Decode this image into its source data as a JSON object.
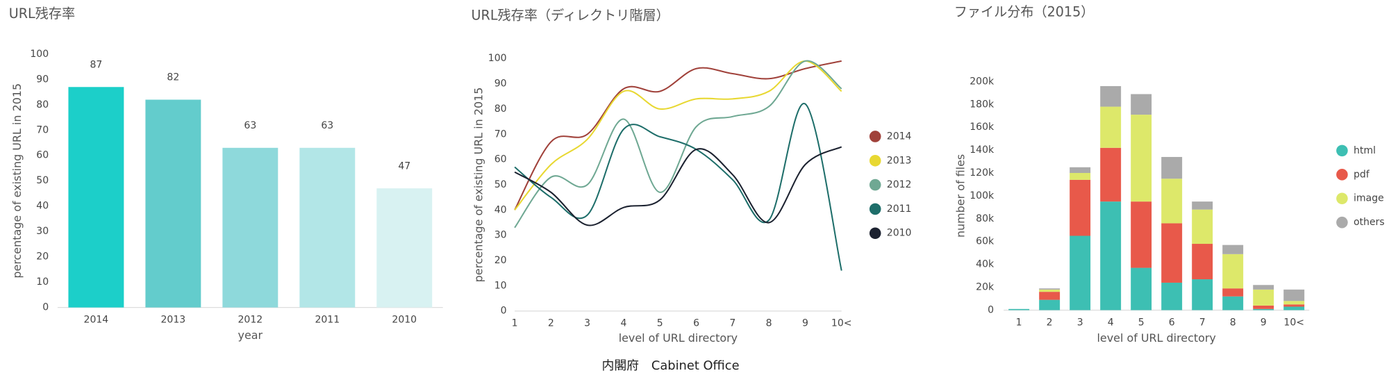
{
  "chart_data": [
    {
      "type": "bar",
      "title": "URL残存率",
      "xlabel": "year",
      "ylabel": "percentage of existing URL in 2015",
      "categories": [
        "2014",
        "2013",
        "2012",
        "2011",
        "2010"
      ],
      "values": [
        87,
        82,
        63,
        63,
        47
      ],
      "colors": [
        "#1ccfc9",
        "#63cccc",
        "#8ed9db",
        "#b2e6e7",
        "#d8f2f2"
      ],
      "ylim": [
        0,
        100
      ],
      "yticks": [
        0,
        10,
        20,
        30,
        40,
        50,
        60,
        70,
        80,
        90,
        100
      ]
    },
    {
      "type": "line",
      "title": "URL残存率（ディレクトリ階層）",
      "xlabel": "level of URL directory",
      "ylabel": "percentage of existing URL in 2015",
      "categories": [
        "1",
        "2",
        "3",
        "4",
        "5",
        "6",
        "7",
        "8",
        "9",
        "10<"
      ],
      "series": [
        {
          "name": "2014",
          "color": "#a0413a",
          "values": [
            40,
            67,
            70,
            88,
            87,
            96,
            94,
            92,
            96,
            99
          ]
        },
        {
          "name": "2013",
          "color": "#e8d832",
          "values": [
            40,
            58,
            68,
            87,
            80,
            84,
            84,
            87,
            99,
            87
          ]
        },
        {
          "name": "2012",
          "color": "#6fa893",
          "values": [
            33,
            53,
            50,
            76,
            47,
            73,
            77,
            81,
            99,
            88
          ]
        },
        {
          "name": "2011",
          "color": "#1e6e6a",
          "values": [
            57,
            45,
            38,
            72,
            69,
            64,
            52,
            36,
            82,
            16
          ]
        },
        {
          "name": "2010",
          "color": "#1c2230",
          "values": [
            55,
            47,
            34,
            41,
            44,
            64,
            54,
            35,
            58,
            65
          ]
        }
      ],
      "ylim": [
        0,
        100
      ],
      "yticks": [
        0,
        10,
        20,
        30,
        40,
        50,
        60,
        70,
        80,
        90,
        100
      ]
    },
    {
      "type": "stacked_bar",
      "title": "ファイル分布（2015）",
      "xlabel": "level of URL directory",
      "ylabel": "number of files",
      "categories": [
        "1",
        "2",
        "3",
        "4",
        "5",
        "6",
        "7",
        "8",
        "9",
        "10<"
      ],
      "series": [
        {
          "name": "html",
          "color": "#3dbfb3",
          "values": [
            1000,
            9000,
            65000,
            95000,
            37000,
            24000,
            27000,
            12000,
            1000,
            3000
          ]
        },
        {
          "name": "pdf",
          "color": "#e8594a",
          "values": [
            0,
            7000,
            49000,
            47000,
            58000,
            52000,
            31000,
            7000,
            3000,
            2000
          ]
        },
        {
          "name": "image",
          "color": "#dde86a",
          "values": [
            0,
            2000,
            6000,
            36000,
            76000,
            39000,
            30000,
            30000,
            14000,
            3000
          ]
        },
        {
          "name": "others",
          "color": "#aaaaaa",
          "values": [
            0,
            1000,
            5000,
            18000,
            18000,
            19000,
            7000,
            8000,
            4000,
            10000
          ]
        }
      ],
      "ylim": [
        0,
        200000
      ],
      "yticks": [
        0,
        {
          "value": 20000,
          "label": "20k"
        },
        {
          "value": 40000,
          "label": "40k"
        },
        {
          "value": 60000,
          "label": "60k"
        },
        {
          "value": 80000,
          "label": "80k"
        },
        {
          "value": 100000,
          "label": "100k"
        },
        {
          "value": 120000,
          "label": "120k"
        },
        {
          "value": 140000,
          "label": "140k"
        },
        {
          "value": 160000,
          "label": "160k"
        },
        {
          "value": 180000,
          "label": "180k"
        },
        {
          "value": 200000,
          "label": "200k"
        }
      ]
    }
  ],
  "footer": "内閣府　Cabinet Office"
}
